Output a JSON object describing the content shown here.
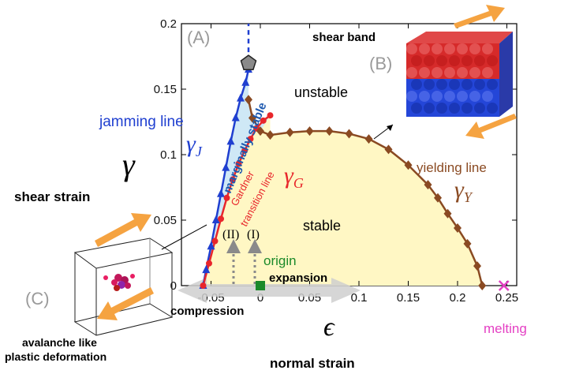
{
  "chart_data": {
    "type": "line",
    "xlim": [
      -0.08,
      0.26
    ],
    "ylim": [
      0,
      0.2
    ],
    "x_ticks": [
      "-0.05",
      "0",
      "0.05",
      "0.1",
      "0.15",
      "0.2",
      "0.25"
    ],
    "y_ticks": [
      "0",
      "0.05",
      "0.1",
      "0.15",
      "0.2"
    ],
    "xlabel_symbol": "ϵ",
    "ylabel_symbol": "γ",
    "xlabel_text": "normal strain",
    "ylabel_text": "shear strain",
    "series": [
      {
        "name": "jamming line",
        "symbol": "γ_J",
        "marker": "triangle",
        "color": "#1f3fd0",
        "x": [
          -0.058,
          -0.055,
          -0.05,
          -0.045,
          -0.04,
          -0.035,
          -0.03,
          -0.025,
          -0.02,
          -0.015,
          -0.012
        ],
        "y": [
          0.0,
          0.012,
          0.03,
          0.05,
          0.07,
          0.09,
          0.11,
          0.128,
          0.143,
          0.155,
          0.165
        ]
      },
      {
        "name": "Gardner transition line",
        "symbol": "γ_G",
        "marker": "circle",
        "color": "#e8262b",
        "x": [
          -0.058,
          -0.052,
          -0.046,
          -0.04,
          -0.034,
          -0.028,
          -0.022,
          -0.016,
          -0.01,
          -0.004,
          0.003,
          0.01
        ],
        "y": [
          0.0,
          0.017,
          0.034,
          0.051,
          0.067,
          0.081,
          0.093,
          0.103,
          0.112,
          0.12,
          0.126,
          0.13
        ]
      },
      {
        "name": "yielding line",
        "symbol": "γ_Y",
        "marker": "diamond",
        "color": "#8a4a22",
        "x": [
          -0.012,
          -0.008,
          0.0,
          0.01,
          0.03,
          0.05,
          0.07,
          0.09,
          0.11,
          0.13,
          0.15,
          0.17,
          0.18,
          0.19,
          0.2,
          0.21,
          0.22,
          0.225
        ],
        "y": [
          0.142,
          0.128,
          0.118,
          0.115,
          0.117,
          0.118,
          0.118,
          0.116,
          0.112,
          0.104,
          0.092,
          0.077,
          0.067,
          0.055,
          0.044,
          0.032,
          0.015,
          0.0
        ]
      },
      {
        "name": "marginally stable",
        "color": "#1f3fd0",
        "style": "dashed",
        "x": [
          -0.012,
          -0.012
        ],
        "y": [
          0.165,
          0.2
        ]
      }
    ],
    "special_points": [
      {
        "name": "pentagon",
        "x": -0.012,
        "y": 0.165,
        "color": "#8a8a8a"
      },
      {
        "name": "origin",
        "x": 0.0,
        "y": 0.0,
        "color": "#1b8a2a"
      },
      {
        "name": "melting",
        "x": 0.247,
        "y": 0.0,
        "color": "#e43fc3"
      }
    ],
    "region_labels": [
      "unstable",
      "stable",
      "marginally stable"
    ],
    "annotations": {
      "panel_a": "(A)",
      "panel_b": "(B)",
      "panel_c": "(C)",
      "shear_band": "shear band",
      "jamming_line": "jamming line",
      "yielding_line": "yielding line",
      "gardner": "Gardner",
      "transition_line": "transition line",
      "gamma_j": "γ",
      "gamma_j_sub": "J",
      "gamma_g": "γ",
      "gamma_g_sub": "G",
      "gamma_y": "γ",
      "gamma_y_sub": "Y",
      "unstable": "unstable",
      "stable": "stable",
      "marginally_stable": "marginally stable",
      "ii": "(II)",
      "i": "(I)",
      "origin": "origin",
      "expansion": "expansion",
      "compression": "compression",
      "melting": "melting",
      "shear_strain": "shear strain",
      "normal_strain": "normal strain",
      "avalanche_1": "avalanche like",
      "avalanche_2": "plastic deformation"
    }
  },
  "colors": {
    "jamming": "#1f3fd0",
    "gardner": "#e8262b",
    "yielding": "#8a4a22",
    "stable_fill": "#fff7c4",
    "marginal_fill": "#cfe8f6",
    "arrow_orange": "#f5a341",
    "origin": "#1b8a2a",
    "melting": "#e43fc3",
    "panel_gray": "#9a9a9a"
  }
}
